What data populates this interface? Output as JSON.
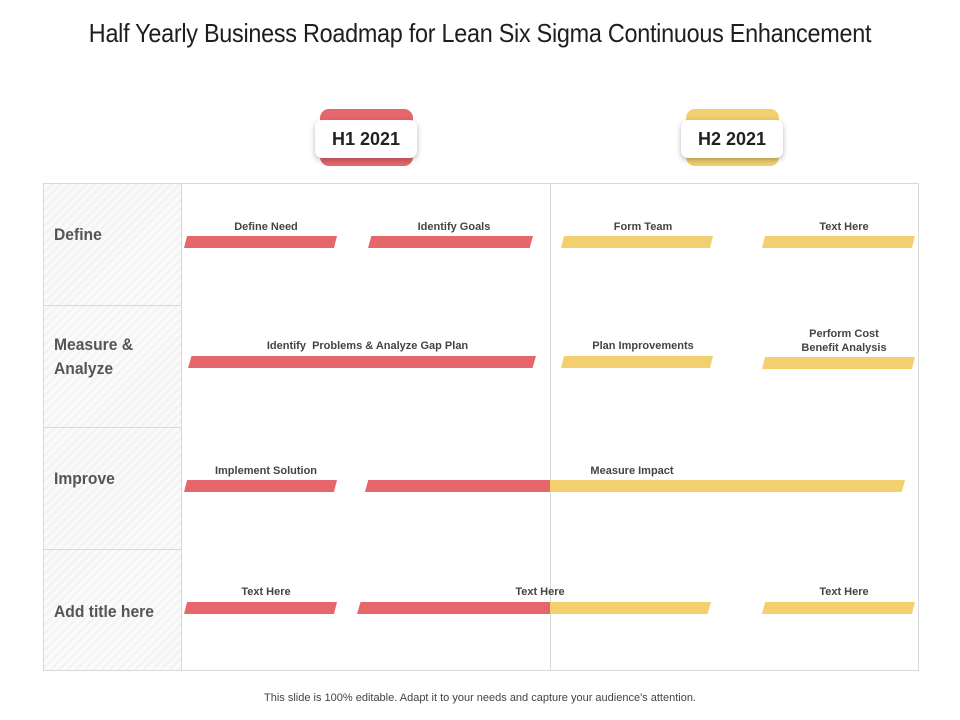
{
  "title": "Half Yearly Business Roadmap for Lean Six Sigma Continuous Enhancement",
  "colors": {
    "h1": "#e5676c",
    "h2": "#f2d06f",
    "grid": "#d9d9d9"
  },
  "periods": [
    {
      "label": "H1 2021",
      "color": "#e5676c"
    },
    {
      "label": "H2 2021",
      "color": "#f2d06f"
    }
  ],
  "rows": [
    {
      "label": "Define"
    },
    {
      "label": "Measure &\nAnalyze"
    },
    {
      "label": "Improve"
    },
    {
      "label": "Add title here"
    }
  ],
  "tasks": [
    {
      "label": "Define Need",
      "period": "H1 2021"
    },
    {
      "label": "Identify Goals",
      "period": "H1 2021"
    },
    {
      "label": "Form Team",
      "period": "H2 2021"
    },
    {
      "label": "Text Here",
      "period": "H2 2021"
    },
    {
      "label": "Identify  Problems & Analyze Gap Plan",
      "period": "H1 2021"
    },
    {
      "label": "Plan Improvements",
      "period": "H2 2021"
    },
    {
      "label": "Perform Cost\nBenefit Analysis",
      "period": "H2 2021"
    },
    {
      "label": "Implement Solution",
      "period": "H1 2021"
    },
    {
      "label": "Measure Impact",
      "period": "H1 2021 – H2 2021"
    },
    {
      "label": "Text Here",
      "period": "H1 2021"
    },
    {
      "label": "Text Here",
      "period": "H1 2021 – H2 2021"
    },
    {
      "label": "Text Here",
      "period": "H2 2021"
    }
  ],
  "footer": "This slide is 100% editable. Adapt it to your needs and capture your audience's attention."
}
